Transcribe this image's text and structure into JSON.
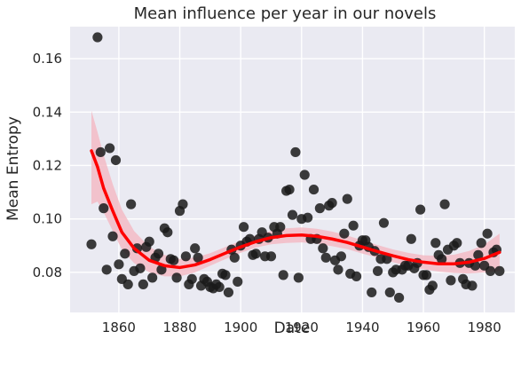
{
  "chart_data": {
    "type": "scatter",
    "title": "Mean influence per year in our novels",
    "xlabel": "Date",
    "ylabel": "Mean Entropy",
    "xlim": [
      1844,
      1990
    ],
    "ylim": [
      0.065,
      0.172
    ],
    "xticks": [
      1860,
      1880,
      1900,
      1920,
      1940,
      1960,
      1980
    ],
    "yticks": [
      0.08,
      0.1,
      0.12,
      0.14,
      0.16
    ],
    "ytick_labels": [
      "0.08",
      "0.10",
      "0.12",
      "0.14",
      "0.16"
    ],
    "grid": true,
    "background": "#eaeaf2",
    "point_color": "#1a1a1a",
    "fit_color": "#ff0000",
    "band_color": "#f4b8c2",
    "scatter_points": [
      [
        1851,
        0.0905
      ],
      [
        1853,
        0.168
      ],
      [
        1854,
        0.125
      ],
      [
        1855,
        0.104
      ],
      [
        1856,
        0.081
      ],
      [
        1857,
        0.1265
      ],
      [
        1858,
        0.0935
      ],
      [
        1859,
        0.122
      ],
      [
        1860,
        0.083
      ],
      [
        1861,
        0.0775
      ],
      [
        1862,
        0.087
      ],
      [
        1863,
        0.0755
      ],
      [
        1864,
        0.1055
      ],
      [
        1865,
        0.0805
      ],
      [
        1866,
        0.089
      ],
      [
        1867,
        0.0815
      ],
      [
        1868,
        0.0755
      ],
      [
        1869,
        0.0895
      ],
      [
        1870,
        0.0915
      ],
      [
        1871,
        0.078
      ],
      [
        1872,
        0.0855
      ],
      [
        1873,
        0.087
      ],
      [
        1874,
        0.081
      ],
      [
        1875,
        0.0965
      ],
      [
        1876,
        0.095
      ],
      [
        1877,
        0.085
      ],
      [
        1878,
        0.0845
      ],
      [
        1879,
        0.078
      ],
      [
        1880,
        0.103
      ],
      [
        1881,
        0.1055
      ],
      [
        1882,
        0.086
      ],
      [
        1883,
        0.0755
      ],
      [
        1884,
        0.0775
      ],
      [
        1885,
        0.089
      ],
      [
        1886,
        0.0855
      ],
      [
        1887,
        0.075
      ],
      [
        1888,
        0.0775
      ],
      [
        1889,
        0.0765
      ],
      [
        1890,
        0.0745
      ],
      [
        1891,
        0.074
      ],
      [
        1892,
        0.0755
      ],
      [
        1893,
        0.0745
      ],
      [
        1894,
        0.0795
      ],
      [
        1895,
        0.079
      ],
      [
        1896,
        0.0725
      ],
      [
        1897,
        0.0885
      ],
      [
        1898,
        0.0855
      ],
      [
        1899,
        0.0765
      ],
      [
        1900,
        0.09
      ],
      [
        1901,
        0.097
      ],
      [
        1902,
        0.0915
      ],
      [
        1903,
        0.0925
      ],
      [
        1904,
        0.0865
      ],
      [
        1905,
        0.087
      ],
      [
        1906,
        0.0925
      ],
      [
        1907,
        0.095
      ],
      [
        1908,
        0.086
      ],
      [
        1909,
        0.093
      ],
      [
        1910,
        0.086
      ],
      [
        1911,
        0.097
      ],
      [
        1912,
        0.0945
      ],
      [
        1913,
        0.097
      ],
      [
        1914,
        0.079
      ],
      [
        1915,
        0.1105
      ],
      [
        1916,
        0.111
      ],
      [
        1917,
        0.1015
      ],
      [
        1918,
        0.125
      ],
      [
        1919,
        0.078
      ],
      [
        1920,
        0.1
      ],
      [
        1921,
        0.1165
      ],
      [
        1922,
        0.1005
      ],
      [
        1923,
        0.0925
      ],
      [
        1924,
        0.111
      ],
      [
        1925,
        0.0925
      ],
      [
        1926,
        0.104
      ],
      [
        1927,
        0.089
      ],
      [
        1928,
        0.0855
      ],
      [
        1929,
        0.105
      ],
      [
        1930,
        0.106
      ],
      [
        1931,
        0.0845
      ],
      [
        1932,
        0.081
      ],
      [
        1933,
        0.086
      ],
      [
        1934,
        0.0945
      ],
      [
        1935,
        0.1075
      ],
      [
        1936,
        0.0795
      ],
      [
        1937,
        0.0975
      ],
      [
        1938,
        0.0785
      ],
      [
        1939,
        0.09
      ],
      [
        1940,
        0.092
      ],
      [
        1941,
        0.092
      ],
      [
        1942,
        0.0895
      ],
      [
        1943,
        0.0725
      ],
      [
        1944,
        0.088
      ],
      [
        1945,
        0.0805
      ],
      [
        1946,
        0.085
      ],
      [
        1947,
        0.0985
      ],
      [
        1948,
        0.085
      ],
      [
        1949,
        0.0725
      ],
      [
        1950,
        0.08
      ],
      [
        1951,
        0.081
      ],
      [
        1952,
        0.0705
      ],
      [
        1953,
        0.081
      ],
      [
        1954,
        0.0825
      ],
      [
        1955,
        0.0825
      ],
      [
        1956,
        0.0925
      ],
      [
        1957,
        0.0815
      ],
      [
        1958,
        0.0835
      ],
      [
        1959,
        0.1035
      ],
      [
        1960,
        0.079
      ],
      [
        1961,
        0.079
      ],
      [
        1962,
        0.0735
      ],
      [
        1963,
        0.075
      ],
      [
        1964,
        0.091
      ],
      [
        1965,
        0.0865
      ],
      [
        1966,
        0.085
      ],
      [
        1967,
        0.1055
      ],
      [
        1968,
        0.0885
      ],
      [
        1969,
        0.077
      ],
      [
        1970,
        0.09
      ],
      [
        1971,
        0.091
      ],
      [
        1972,
        0.0835
      ],
      [
        1973,
        0.0775
      ],
      [
        1974,
        0.0755
      ],
      [
        1975,
        0.0835
      ],
      [
        1976,
        0.075
      ],
      [
        1977,
        0.0825
      ],
      [
        1978,
        0.0865
      ],
      [
        1979,
        0.091
      ],
      [
        1980,
        0.0825
      ],
      [
        1981,
        0.0945
      ],
      [
        1982,
        0.0805
      ],
      [
        1983,
        0.0875
      ],
      [
        1984,
        0.0885
      ],
      [
        1985,
        0.0805
      ]
    ],
    "fit_curve": [
      [
        1851,
        0.1255
      ],
      [
        1853,
        0.1195
      ],
      [
        1855,
        0.1115
      ],
      [
        1858,
        0.103
      ],
      [
        1861,
        0.095
      ],
      [
        1865,
        0.089
      ],
      [
        1870,
        0.0845
      ],
      [
        1875,
        0.0825
      ],
      [
        1880,
        0.0818
      ],
      [
        1885,
        0.0828
      ],
      [
        1890,
        0.0848
      ],
      [
        1895,
        0.0872
      ],
      [
        1900,
        0.0895
      ],
      [
        1905,
        0.0915
      ],
      [
        1910,
        0.093
      ],
      [
        1915,
        0.0938
      ],
      [
        1920,
        0.094
      ],
      [
        1925,
        0.0935
      ],
      [
        1930,
        0.0925
      ],
      [
        1935,
        0.0912
      ],
      [
        1940,
        0.0895
      ],
      [
        1945,
        0.0878
      ],
      [
        1950,
        0.0862
      ],
      [
        1955,
        0.0848
      ],
      [
        1960,
        0.0838
      ],
      [
        1965,
        0.0832
      ],
      [
        1970,
        0.0832
      ],
      [
        1975,
        0.0838
      ],
      [
        1980,
        0.0852
      ],
      [
        1985,
        0.0875
      ]
    ],
    "confidence_band": [
      [
        1851,
        0.1405,
        0.1055
      ],
      [
        1853,
        0.1325,
        0.1065
      ],
      [
        1855,
        0.124,
        0.1025
      ],
      [
        1858,
        0.113,
        0.0955
      ],
      [
        1861,
        0.1035,
        0.0885
      ],
      [
        1865,
        0.0955,
        0.0835
      ],
      [
        1870,
        0.0895,
        0.08
      ],
      [
        1875,
        0.0865,
        0.0785
      ],
      [
        1880,
        0.085,
        0.0785
      ],
      [
        1885,
        0.0855,
        0.08
      ],
      [
        1890,
        0.0872,
        0.0825
      ],
      [
        1895,
        0.0895,
        0.085
      ],
      [
        1900,
        0.0918,
        0.0873
      ],
      [
        1905,
        0.0938,
        0.0893
      ],
      [
        1910,
        0.0955,
        0.0905
      ],
      [
        1915,
        0.0965,
        0.091
      ],
      [
        1920,
        0.0968,
        0.0912
      ],
      [
        1925,
        0.0963,
        0.0908
      ],
      [
        1930,
        0.0953,
        0.0898
      ],
      [
        1935,
        0.0938,
        0.0887
      ],
      [
        1940,
        0.092,
        0.087
      ],
      [
        1945,
        0.0902,
        0.0855
      ],
      [
        1950,
        0.0886,
        0.0838
      ],
      [
        1955,
        0.0873,
        0.0823
      ],
      [
        1960,
        0.0864,
        0.0812
      ],
      [
        1965,
        0.0862,
        0.0803
      ],
      [
        1970,
        0.0866,
        0.0798
      ],
      [
        1975,
        0.088,
        0.0796
      ],
      [
        1980,
        0.0904,
        0.08
      ],
      [
        1985,
        0.0945,
        0.0805
      ]
    ]
  }
}
